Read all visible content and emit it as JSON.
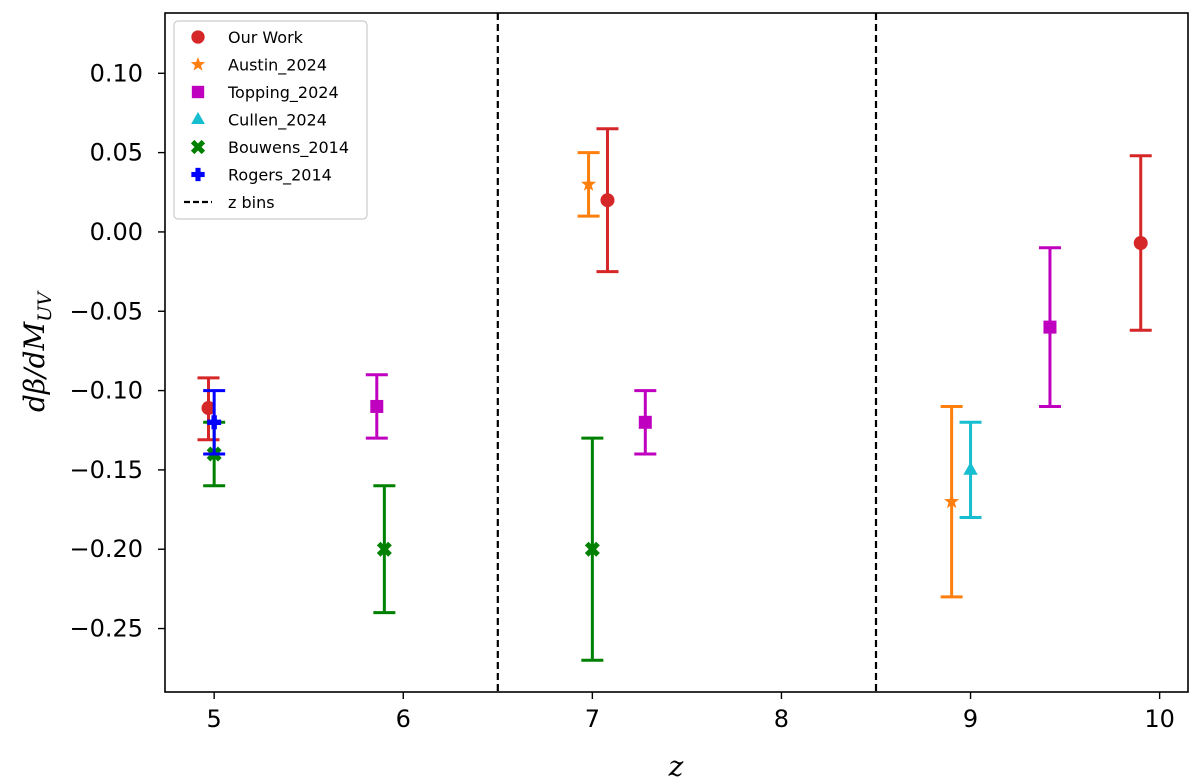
{
  "chart_data": {
    "type": "scatter",
    "title": "",
    "xlabel": "z",
    "ylabel": "dβ/dM_UV",
    "ylabel_main": "dβ/dM",
    "ylabel_sub": "UV",
    "xlim": [
      4.74,
      10.15
    ],
    "ylim": [
      -0.29,
      0.138
    ],
    "xticks": [
      5,
      6,
      7,
      8,
      9,
      10
    ],
    "xtick_labels": [
      "5",
      "6",
      "7",
      "8",
      "9",
      "10"
    ],
    "yticks": [
      0.1,
      0.05,
      0.0,
      -0.05,
      -0.1,
      -0.15,
      -0.2,
      -0.25
    ],
    "ytick_labels": [
      "0.10",
      "0.05",
      "0.00",
      "−0.05",
      "−0.10",
      "−0.15",
      "−0.20",
      "−0.25"
    ],
    "grid": false,
    "legend_position": "top-left",
    "vlines": [
      6.5,
      8.5
    ],
    "vline_label": "z bins",
    "series": [
      {
        "name": "Our Work",
        "marker": "circle",
        "color": "#d62728",
        "points": [
          {
            "x": 4.97,
            "y": -0.111,
            "yerr_low": 0.02,
            "yerr_high": 0.019
          },
          {
            "x": 7.08,
            "y": 0.02,
            "yerr_low": 0.045,
            "yerr_high": 0.045
          },
          {
            "x": 9.9,
            "y": -0.007,
            "yerr_low": 0.055,
            "yerr_high": 0.055
          }
        ]
      },
      {
        "name": "Austin_2024",
        "marker": "star",
        "color": "#ff7f0e",
        "points": [
          {
            "x": 6.98,
            "y": 0.03,
            "yerr_low": 0.02,
            "yerr_high": 0.02
          },
          {
            "x": 8.9,
            "y": -0.17,
            "yerr_low": 0.06,
            "yerr_high": 0.06
          }
        ]
      },
      {
        "name": "Topping_2024",
        "marker": "square",
        "color": "#bf00bf",
        "points": [
          {
            "x": 5.86,
            "y": -0.11,
            "yerr_low": 0.02,
            "yerr_high": 0.02
          },
          {
            "x": 7.28,
            "y": -0.12,
            "yerr_low": 0.02,
            "yerr_high": 0.02
          },
          {
            "x": 9.42,
            "y": -0.06,
            "yerr_low": 0.05,
            "yerr_high": 0.05
          }
        ]
      },
      {
        "name": "Cullen_2024",
        "marker": "triangle",
        "color": "#17becf",
        "points": [
          {
            "x": 9.0,
            "y": -0.15,
            "yerr_low": 0.03,
            "yerr_high": 0.03
          }
        ]
      },
      {
        "name": "Bouwens_2014",
        "marker": "x",
        "color": "#008000",
        "points": [
          {
            "x": 5.0,
            "y": -0.14,
            "yerr_low": 0.02,
            "yerr_high": 0.02
          },
          {
            "x": 5.9,
            "y": -0.2,
            "yerr_low": 0.04,
            "yerr_high": 0.04
          },
          {
            "x": 7.0,
            "y": -0.2,
            "yerr_low": 0.07,
            "yerr_high": 0.07
          }
        ]
      },
      {
        "name": "Rogers_2014",
        "marker": "plus",
        "color": "#0000ff",
        "points": [
          {
            "x": 5.0,
            "y": -0.12,
            "yerr_low": 0.02,
            "yerr_high": 0.02
          }
        ]
      }
    ]
  }
}
